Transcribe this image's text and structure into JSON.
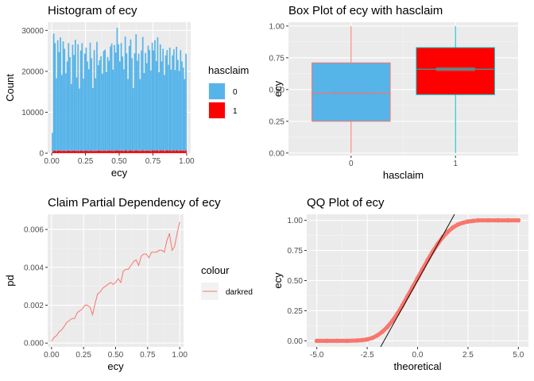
{
  "colors": {
    "panel_bg": "#ebebeb",
    "grid_major": "#ffffff",
    "grid_minor": "#f5f5f5",
    "class0": "#56b4e9",
    "class1": "#ff0000",
    "box0_border": "#f8766d",
    "box1_border": "#00bfc4",
    "pd_line": "#f8766d",
    "qq_points": "#f8766d",
    "qq_line": "#000000",
    "median_line": "#808080"
  },
  "chart_data": [
    {
      "type": "bar",
      "title": "Histogram of ecy",
      "xlabel": "ecy",
      "ylabel": "Count",
      "xlim": [
        -0.03,
        1.03
      ],
      "ylim": [
        0,
        32000
      ],
      "x_ticks": [
        0.0,
        0.25,
        0.5,
        0.75,
        1.0
      ],
      "x_tick_labels": [
        "0.00",
        "0.25",
        "0.50",
        "0.75",
        "1.00"
      ],
      "y_ticks": [
        0,
        10000,
        20000,
        30000
      ],
      "y_tick_labels": [
        "0",
        "10000",
        "20000",
        "30000"
      ],
      "legend": {
        "title": "hasclaim",
        "placement": "right",
        "entries": [
          {
            "label": "0",
            "color": "#56b4e9"
          },
          {
            "label": "1",
            "color": "#ff0000"
          }
        ]
      },
      "bin_width": 0.01,
      "series": [
        {
          "name": "0",
          "values": [
            4800,
            28600,
            26300,
            17800,
            27000,
            24100,
            27700,
            18600,
            26700,
            24900,
            19000,
            21800,
            26300,
            22900,
            16400,
            25900,
            23400,
            27100,
            18000,
            26000,
            15300,
            24500,
            26300,
            17700,
            23700,
            25200,
            21800,
            20000,
            26400,
            22600,
            15400,
            24600,
            17800,
            26600,
            20900,
            22100,
            23100,
            18900,
            24400,
            24700,
            19300,
            22900,
            22000,
            25500,
            26200,
            19900,
            25800,
            24000,
            29900,
            26000,
            21800,
            26300,
            23000,
            20000,
            27800,
            23800,
            17600,
            25600,
            27100,
            22600,
            15400,
            23800,
            28400,
            22000,
            23700,
            17600,
            24500,
            27700,
            19100,
            23900,
            21400,
            25700,
            24600,
            19700,
            26300,
            24500,
            26900,
            21900,
            27600,
            19300,
            25900,
            21800,
            24800,
            18600,
            23300,
            24500,
            21000,
            25100,
            19900,
            23300,
            24700,
            19800,
            25300,
            22200,
            19600,
            24500,
            21800,
            20300,
            17600,
            23600
          ]
        },
        {
          "name": "1",
          "values": [
            200,
            600,
            600,
            500,
            600,
            600,
            600,
            500,
            600,
            600,
            500,
            600,
            600,
            600,
            500,
            600,
            600,
            600,
            500,
            600,
            500,
            600,
            600,
            500,
            600,
            600,
            600,
            500,
            600,
            600,
            500,
            600,
            500,
            600,
            600,
            600,
            600,
            500,
            600,
            600,
            500,
            600,
            600,
            600,
            600,
            500,
            600,
            600,
            700,
            600,
            600,
            600,
            600,
            500,
            700,
            600,
            500,
            600,
            700,
            600,
            500,
            600,
            700,
            600,
            600,
            500,
            600,
            700,
            500,
            600,
            600,
            600,
            600,
            500,
            700,
            600,
            700,
            600,
            700,
            500,
            700,
            600,
            700,
            500,
            600,
            700,
            600,
            700,
            500,
            600,
            700,
            500,
            700,
            600,
            500,
            700,
            600,
            600,
            500,
            700
          ]
        }
      ]
    },
    {
      "type": "box",
      "title": "Box Plot of ecy with hasclaim",
      "xlabel": "hasclaim",
      "ylabel": "ecy",
      "categories": [
        "0",
        "1"
      ],
      "ylim": [
        -0.02,
        1.03
      ],
      "y_ticks": [
        0,
        0.25,
        0.5,
        0.75,
        1.0
      ],
      "y_tick_labels": [
        "0.00",
        "0.25",
        "0.50",
        "0.75",
        "1.00"
      ],
      "boxes": [
        {
          "name": "0",
          "min": 0.0,
          "q1": 0.25,
          "median": 0.47,
          "q3": 0.71,
          "max": 1.0,
          "notch": [
            0.465,
            0.475
          ],
          "fill": "#56b4e9",
          "border": "#f8766d"
        },
        {
          "name": "1",
          "min": 0.0,
          "q1": 0.46,
          "median": 0.66,
          "q3": 0.83,
          "max": 1.0,
          "notch": [
            0.645,
            0.675
          ],
          "fill": "#ff0000",
          "border": "#00bfc4"
        }
      ]
    },
    {
      "type": "line",
      "title": "Claim Partial Dependency of ecy",
      "xlabel": "ecy",
      "ylabel": "pd",
      "xlim": [
        -0.03,
        1.03
      ],
      "ylim": [
        -0.0002,
        0.0068
      ],
      "x_ticks": [
        0.0,
        0.25,
        0.5,
        0.75,
        1.0
      ],
      "x_tick_labels": [
        "0.00",
        "0.25",
        "0.50",
        "0.75",
        "1.00"
      ],
      "y_ticks": [
        0.0,
        0.002,
        0.004,
        0.006
      ],
      "y_tick_labels": [
        "0.000",
        "0.002",
        "0.004",
        "0.006"
      ],
      "legend": {
        "title": "colour",
        "placement": "right",
        "entries": [
          {
            "label": "darkred",
            "color": "#f8766d"
          }
        ]
      },
      "series": [
        {
          "x": [
            0.0,
            0.02,
            0.04,
            0.06,
            0.08,
            0.1,
            0.12,
            0.14,
            0.16,
            0.18,
            0.2,
            0.22,
            0.24,
            0.26,
            0.28,
            0.3,
            0.32,
            0.34,
            0.36,
            0.38,
            0.4,
            0.42,
            0.44,
            0.46,
            0.48,
            0.5,
            0.52,
            0.54,
            0.56,
            0.58,
            0.6,
            0.62,
            0.64,
            0.66,
            0.68,
            0.7,
            0.72,
            0.74,
            0.76,
            0.78,
            0.8,
            0.82,
            0.84,
            0.86,
            0.88,
            0.9,
            0.92,
            0.94,
            0.96,
            0.98,
            1.0
          ],
          "y": [
            0.0001,
            0.0003,
            0.0004,
            0.0006,
            0.0007,
            0.0009,
            0.0011,
            0.0012,
            0.0013,
            0.0013,
            0.0016,
            0.0017,
            0.0018,
            0.002,
            0.002,
            0.0019,
            0.0015,
            0.0021,
            0.0026,
            0.0027,
            0.0029,
            0.003,
            0.0031,
            0.0032,
            0.0031,
            0.0032,
            0.0034,
            0.0032,
            0.0038,
            0.0039,
            0.0039,
            0.0041,
            0.0043,
            0.0044,
            0.0041,
            0.0046,
            0.0047,
            0.0047,
            0.0045,
            0.0048,
            0.0048,
            0.0048,
            0.0049,
            0.0049,
            0.0048,
            0.0054,
            0.0058,
            0.0049,
            0.0051,
            0.0058,
            0.0064
          ]
        }
      ]
    },
    {
      "type": "scatter",
      "title": "QQ Plot of ecy",
      "xlabel": "theoretical",
      "ylabel": "ecy",
      "xlim": [
        -5.5,
        5.5
      ],
      "ylim": [
        -0.05,
        1.05
      ],
      "x_ticks": [
        -5,
        -2.5,
        0,
        2.5,
        5
      ],
      "x_tick_labels": [
        "-5.0",
        "-2.5",
        "0.0",
        "2.5",
        "5.0"
      ],
      "y_ticks": [
        0,
        0.25,
        0.5,
        0.75,
        1.0
      ],
      "y_tick_labels": [
        "0.00",
        "0.25",
        "0.50",
        "0.75",
        "1.00"
      ],
      "qq_line": {
        "slope": 0.3,
        "intercept": 0.5
      },
      "series": [
        {
          "x": [
            -5.0,
            -4.5,
            -4.0,
            -3.5,
            -3.0,
            -2.75,
            -2.5,
            -2.25,
            -2.0,
            -1.75,
            -1.5,
            -1.25,
            -1.0,
            -0.75,
            -0.5,
            -0.25,
            0.0,
            0.25,
            0.5,
            0.75,
            1.0,
            1.25,
            1.5,
            1.75,
            2.0,
            2.25,
            2.5,
            2.75,
            3.0,
            3.5,
            4.0,
            4.5,
            5.0
          ],
          "y": [
            0.0,
            0.0,
            0.0,
            0.0,
            0.003,
            0.006,
            0.012,
            0.024,
            0.045,
            0.075,
            0.115,
            0.165,
            0.225,
            0.295,
            0.37,
            0.445,
            0.52,
            0.595,
            0.67,
            0.74,
            0.805,
            0.86,
            0.905,
            0.94,
            0.965,
            0.98,
            0.99,
            0.995,
            1.0,
            1.0,
            1.0,
            1.0,
            1.0
          ]
        }
      ]
    }
  ]
}
